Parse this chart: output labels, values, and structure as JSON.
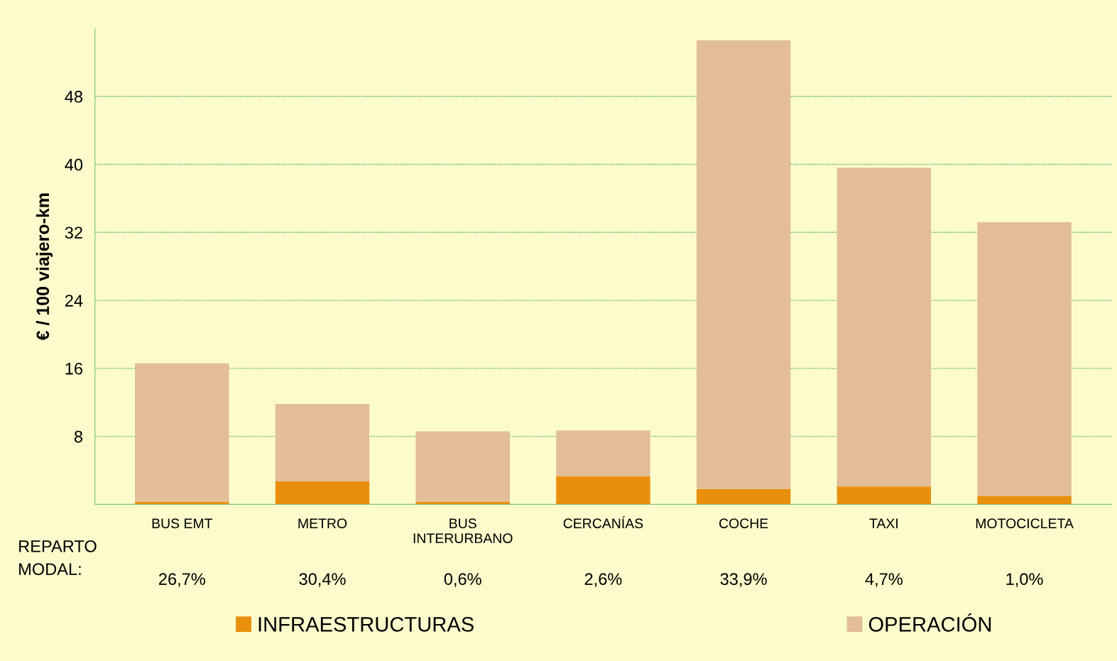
{
  "chart_data": {
    "type": "bar",
    "ylabel": "€ / 100 viajero-km",
    "categories": [
      "BUS EMT",
      "METRO",
      "BUS\nINTERURBANO",
      "CERCANÍAS",
      "COCHE",
      "TAXI",
      "MOTOCICLETA"
    ],
    "stacked": true,
    "series": [
      {
        "name": "INFRAESTRUCTURAS",
        "color": "#e8900c",
        "values": [
          0.3,
          2.7,
          0.3,
          3.3,
          1.8,
          2.1,
          1.0
        ]
      },
      {
        "name": "OPERACIÓN",
        "color": "#e2bd98",
        "values": [
          16.3,
          9.1,
          8.3,
          5.4,
          52.8,
          37.5,
          32.2
        ]
      }
    ],
    "ylim": [
      0,
      56
    ],
    "yticks": [
      8,
      16,
      24,
      32,
      40,
      48
    ],
    "grid": "y",
    "legend": "bottom",
    "annotations": [
      "REPARTO\nMODAL:",
      "26,7%",
      "30,4%",
      "0,6%",
      "2,6%",
      "33,9%",
      "4,7%",
      "1,0%"
    ]
  }
}
